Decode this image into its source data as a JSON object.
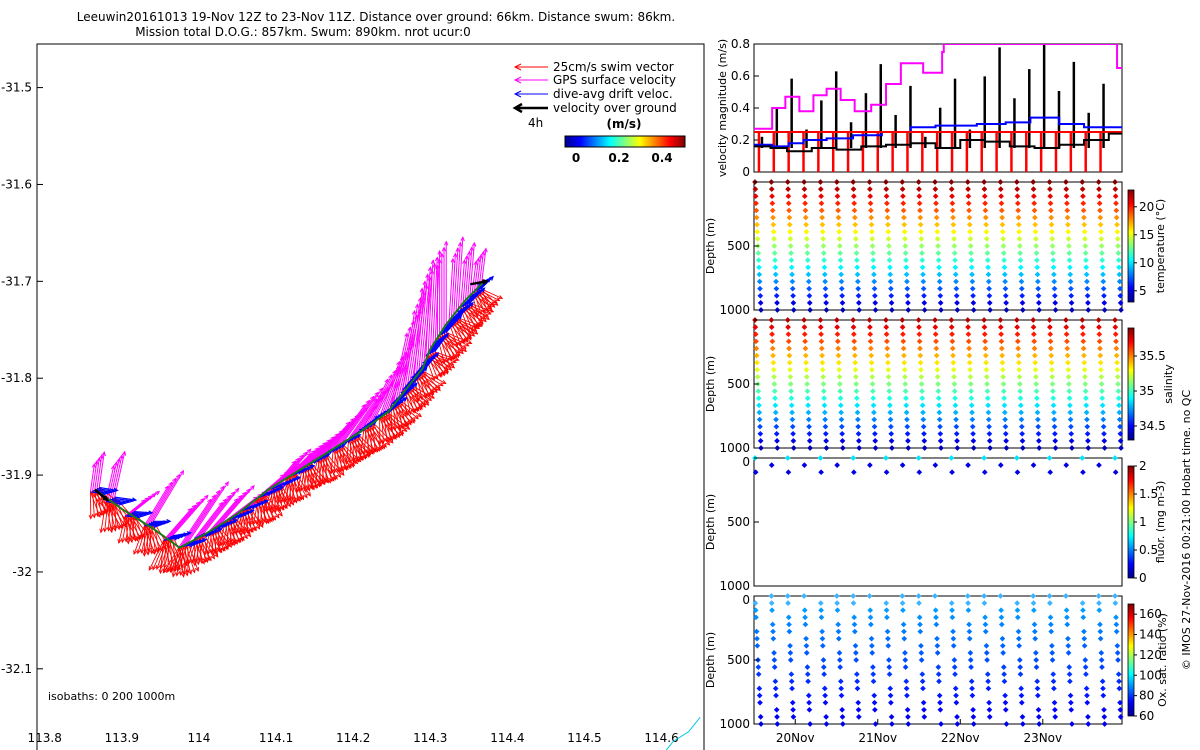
{
  "title": {
    "line1": "Leeuwin20161013 19-Nov 12Z to 23-Nov 11Z. Distance over ground: 66km. Distance swum: 86km.",
    "line2": "Mission total D.O.G.: 857km. Swum: 890km. nrot ucur:0"
  },
  "side_note": "© IMOS 27-Nov-2016 00:21:00 Hobart time. no QC",
  "colors": {
    "swim": "#ff0000",
    "gps": "#ff00ff",
    "drift": "#0000ff",
    "over_ground": "#000000",
    "track": "#1a7a1a"
  },
  "chart_data": [
    {
      "id": "map",
      "type": "quiver",
      "x_ticks": [
        "113.8",
        "113.9",
        "114",
        "114.1",
        "114.2",
        "114.3",
        "114.4",
        "114.5",
        "114.6"
      ],
      "y_ticks": [
        "-31.5",
        "-31.6",
        "-31.7",
        "-31.8",
        "-31.9",
        "-32",
        "-32.1"
      ],
      "xlim": [
        113.79,
        114.655
      ],
      "ylim": [
        -32.19,
        -31.455
      ],
      "legend": [
        {
          "label": "25cm/s swim vector",
          "color": "#ff0000"
        },
        {
          "label": "GPS surface velocity",
          "color": "#ff00ff"
        },
        {
          "label": "dive-avg drift veloc.",
          "color": "#0000ff"
        },
        {
          "label": "velocity over ground",
          "color": "#000000"
        }
      ],
      "legend_position": "top-right",
      "interval_label": "4h",
      "colorbar": {
        "title": "(m/s)",
        "ticks": [
          "0",
          "0.2",
          "0.4"
        ],
        "range": [
          -0.05,
          0.5
        ]
      },
      "isobaths_label": "isobaths: 0   200   1000m",
      "track": [
        {
          "lon": 113.865,
          "lat": -31.915
        },
        {
          "lon": 113.9,
          "lat": -31.935
        },
        {
          "lon": 113.94,
          "lat": -31.955
        },
        {
          "lon": 113.975,
          "lat": -31.975
        },
        {
          "lon": 114.01,
          "lat": -31.96
        },
        {
          "lon": 114.05,
          "lat": -31.94
        },
        {
          "lon": 114.09,
          "lat": -31.915
        },
        {
          "lon": 114.13,
          "lat": -31.895
        },
        {
          "lon": 114.17,
          "lat": -31.875
        },
        {
          "lon": 114.21,
          "lat": -31.855
        },
        {
          "lon": 114.245,
          "lat": -31.835
        },
        {
          "lon": 114.26,
          "lat": -31.82
        },
        {
          "lon": 114.29,
          "lat": -31.79
        },
        {
          "lon": 114.3,
          "lat": -31.77
        },
        {
          "lon": 114.32,
          "lat": -31.745
        },
        {
          "lon": 114.345,
          "lat": -31.72
        },
        {
          "lon": 114.37,
          "lat": -31.7
        }
      ],
      "coastline": [
        {
          "lon": 114.6,
          "lat": -32.19
        },
        {
          "lon": 114.615,
          "lat": -32.175
        },
        {
          "lon": 114.635,
          "lat": -32.165
        },
        {
          "lon": 114.65,
          "lat": -32.15
        }
      ],
      "velocity_samples": [
        {
          "lon": 113.865,
          "lat": -31.915,
          "gps_u": 0.05,
          "gps_v": 0.35,
          "drift_u": 0.3,
          "drift_v": -0.05,
          "swim_u": 0.2,
          "swim_v": -0.4
        },
        {
          "lon": 113.885,
          "lat": -31.925,
          "gps_u": 0.1,
          "gps_v": 0.45,
          "drift_u": 0.35,
          "drift_v": -0.05,
          "swim_u": 0.15,
          "swim_v": -0.5
        },
        {
          "lon": 113.91,
          "lat": -31.94,
          "gps_u": 0.25,
          "gps_v": 0.2,
          "drift_u": 0.3,
          "drift_v": -0.02,
          "swim_u": 0.1,
          "swim_v": -0.45
        },
        {
          "lon": 113.935,
          "lat": -31.95,
          "gps_u": 0.3,
          "gps_v": 0.5,
          "drift_u": 0.28,
          "drift_v": 0.0,
          "swim_u": 0.05,
          "swim_v": -0.5
        },
        {
          "lon": 113.96,
          "lat": -31.965,
          "gps_u": 0.35,
          "gps_v": 0.4,
          "drift_u": 0.3,
          "drift_v": 0.05,
          "swim_u": 0.0,
          "swim_v": -0.55
        },
        {
          "lon": 113.98,
          "lat": -31.972,
          "gps_u": 0.4,
          "gps_v": 0.6,
          "drift_u": 0.3,
          "drift_v": 0.05,
          "swim_u": -0.05,
          "swim_v": -0.5
        },
        {
          "lon": 114.0,
          "lat": -31.963,
          "gps_u": 0.35,
          "gps_v": 0.45,
          "drift_u": 0.3,
          "drift_v": 0.08,
          "swim_u": 0.05,
          "swim_v": -0.45
        },
        {
          "lon": 114.02,
          "lat": -31.955,
          "gps_u": 0.35,
          "gps_v": 0.4,
          "drift_u": 0.3,
          "drift_v": 0.1,
          "swim_u": 0.1,
          "swim_v": -0.4
        },
        {
          "lon": 114.04,
          "lat": -31.945,
          "gps_u": 0.4,
          "gps_v": 0.3,
          "drift_u": 0.32,
          "drift_v": 0.1,
          "swim_u": 0.1,
          "swim_v": -0.42
        },
        {
          "lon": 114.06,
          "lat": -31.935,
          "gps_u": 0.4,
          "gps_v": 0.25,
          "drift_u": 0.3,
          "drift_v": 0.1,
          "swim_u": 0.05,
          "swim_v": -0.4
        },
        {
          "lon": 114.08,
          "lat": -31.922,
          "gps_u": 0.35,
          "gps_v": 0.3,
          "drift_u": 0.3,
          "drift_v": 0.12,
          "swim_u": 0.1,
          "swim_v": -0.45
        },
        {
          "lon": 114.1,
          "lat": -31.912,
          "gps_u": 0.3,
          "gps_v": 0.35,
          "drift_u": 0.32,
          "drift_v": 0.12,
          "swim_u": 0.05,
          "swim_v": -0.4
        },
        {
          "lon": 114.12,
          "lat": -31.9,
          "gps_u": 0.3,
          "gps_v": 0.3,
          "drift_u": 0.3,
          "drift_v": 0.12,
          "swim_u": 0.05,
          "swim_v": -0.45
        },
        {
          "lon": 114.14,
          "lat": -31.89,
          "gps_u": 0.35,
          "gps_v": 0.35,
          "drift_u": 0.3,
          "drift_v": 0.15,
          "swim_u": 0.1,
          "swim_v": -0.4
        },
        {
          "lon": 114.16,
          "lat": -31.88,
          "gps_u": 0.4,
          "gps_v": 0.45,
          "drift_u": 0.3,
          "drift_v": 0.15,
          "swim_u": 0.1,
          "swim_v": -0.45
        },
        {
          "lon": 114.18,
          "lat": -31.87,
          "gps_u": 0.4,
          "gps_v": 0.55,
          "drift_u": 0.3,
          "drift_v": 0.15,
          "swim_u": 0.15,
          "swim_v": -0.4
        },
        {
          "lon": 114.2,
          "lat": -31.86,
          "gps_u": 0.35,
          "gps_v": 0.5,
          "drift_u": 0.3,
          "drift_v": 0.2,
          "swim_u": 0.15,
          "swim_v": -0.4
        },
        {
          "lon": 114.22,
          "lat": -31.848,
          "gps_u": 0.3,
          "gps_v": 0.6,
          "drift_u": 0.3,
          "drift_v": 0.22,
          "swim_u": 0.15,
          "swim_v": -0.45
        },
        {
          "lon": 114.24,
          "lat": -31.838,
          "gps_u": 0.25,
          "gps_v": 0.7,
          "drift_u": 0.3,
          "drift_v": 0.25,
          "swim_u": 0.2,
          "swim_v": -0.4
        },
        {
          "lon": 114.255,
          "lat": -31.825,
          "gps_u": 0.2,
          "gps_v": 0.9,
          "drift_u": 0.28,
          "drift_v": 0.28,
          "swim_u": 0.2,
          "swim_v": -0.4
        },
        {
          "lon": 114.27,
          "lat": -31.81,
          "gps_u": 0.15,
          "gps_v": 1.0,
          "drift_u": 0.25,
          "drift_v": 0.3,
          "swim_u": 0.25,
          "swim_v": -0.35
        },
        {
          "lon": 114.285,
          "lat": -31.795,
          "gps_u": 0.1,
          "gps_v": 1.1,
          "drift_u": 0.25,
          "drift_v": 0.3,
          "swim_u": 0.25,
          "swim_v": -0.35
        },
        {
          "lon": 114.3,
          "lat": -31.775,
          "gps_u": 0.05,
          "gps_v": 1.0,
          "drift_u": 0.22,
          "drift_v": 0.3,
          "swim_u": 0.3,
          "swim_v": -0.3
        },
        {
          "lon": 114.315,
          "lat": -31.755,
          "gps_u": 0.0,
          "gps_v": 0.9,
          "drift_u": 0.25,
          "drift_v": 0.28,
          "swim_u": 0.3,
          "swim_v": -0.35
        },
        {
          "lon": 114.33,
          "lat": -31.74,
          "gps_u": 0.05,
          "gps_v": 0.8,
          "drift_u": 0.25,
          "drift_v": 0.25,
          "swim_u": 0.3,
          "swim_v": -0.3
        },
        {
          "lon": 114.345,
          "lat": -31.725,
          "gps_u": 0.05,
          "gps_v": 0.6,
          "drift_u": 0.25,
          "drift_v": 0.25,
          "swim_u": 0.3,
          "swim_v": -0.3
        },
        {
          "lon": 114.36,
          "lat": -31.71,
          "gps_u": 0.05,
          "gps_v": 0.4,
          "drift_u": 0.2,
          "drift_v": 0.2,
          "swim_u": 0.25,
          "swim_v": -0.3
        }
      ]
    },
    {
      "id": "velocity",
      "type": "line",
      "ylabel": "velocity magnitude (m/s)",
      "y_ticks": [
        "0",
        "0.2",
        "0.4",
        "0.6",
        "0.8"
      ],
      "ylim": [
        0,
        0.8
      ],
      "xlim": [
        19.5,
        23.96
      ],
      "series": [
        {
          "color": "#ff00ff",
          "points": [
            [
              19.5,
              0.27
            ],
            [
              19.72,
              0.27
            ],
            [
              19.72,
              0.4
            ],
            [
              19.88,
              0.4
            ],
            [
              19.88,
              0.47
            ],
            [
              20.05,
              0.47
            ],
            [
              20.05,
              0.38
            ],
            [
              20.22,
              0.38
            ],
            [
              20.22,
              0.48
            ],
            [
              20.38,
              0.48
            ],
            [
              20.38,
              0.52
            ],
            [
              20.55,
              0.52
            ],
            [
              20.55,
              0.45
            ],
            [
              20.72,
              0.45
            ],
            [
              20.72,
              0.38
            ],
            [
              20.92,
              0.38
            ],
            [
              20.92,
              0.42
            ],
            [
              21.1,
              0.42
            ],
            [
              21.1,
              0.55
            ],
            [
              21.28,
              0.55
            ],
            [
              21.28,
              0.68
            ],
            [
              21.55,
              0.68
            ],
            [
              21.55,
              0.62
            ],
            [
              21.78,
              0.62
            ],
            [
              21.78,
              0.75
            ],
            [
              21.8,
              0.75
            ],
            [
              21.8,
              0.8
            ],
            [
              23.9,
              0.8
            ],
            [
              23.9,
              0.65
            ],
            [
              23.96,
              0.65
            ]
          ]
        },
        {
          "color": "#0000ff",
          "points": [
            [
              19.5,
              0.17
            ],
            [
              19.72,
              0.17
            ],
            [
              19.72,
              0.16
            ],
            [
              19.92,
              0.16
            ],
            [
              19.92,
              0.18
            ],
            [
              20.1,
              0.18
            ],
            [
              20.1,
              0.2
            ],
            [
              20.38,
              0.2
            ],
            [
              20.38,
              0.21
            ],
            [
              20.7,
              0.21
            ],
            [
              20.7,
              0.23
            ],
            [
              21.05,
              0.23
            ],
            [
              21.05,
              0.25
            ],
            [
              21.4,
              0.25
            ],
            [
              21.4,
              0.28
            ],
            [
              21.7,
              0.28
            ],
            [
              21.7,
              0.29
            ],
            [
              22.2,
              0.29
            ],
            [
              22.2,
              0.3
            ],
            [
              22.55,
              0.3
            ],
            [
              22.55,
              0.31
            ],
            [
              22.85,
              0.31
            ],
            [
              22.85,
              0.34
            ],
            [
              23.2,
              0.34
            ],
            [
              23.2,
              0.3
            ],
            [
              23.5,
              0.3
            ],
            [
              23.5,
              0.28
            ],
            [
              23.96,
              0.28
            ]
          ]
        },
        {
          "color": "#ff0000",
          "points": [
            [
              19.5,
              0.25
            ],
            [
              23.96,
              0.25
            ]
          ]
        },
        {
          "color": "#000000",
          "points": [
            [
              19.5,
              0.16
            ],
            [
              19.7,
              0.16
            ],
            [
              19.7,
              0.15
            ],
            [
              19.9,
              0.15
            ],
            [
              19.9,
              0.13
            ],
            [
              20.2,
              0.13
            ],
            [
              20.2,
              0.15
            ],
            [
              20.5,
              0.15
            ],
            [
              20.5,
              0.14
            ],
            [
              20.8,
              0.14
            ],
            [
              20.8,
              0.16
            ],
            [
              21.1,
              0.16
            ],
            [
              21.1,
              0.17
            ],
            [
              21.4,
              0.17
            ],
            [
              21.4,
              0.18
            ],
            [
              21.7,
              0.18
            ],
            [
              21.7,
              0.15
            ],
            [
              22.0,
              0.15
            ],
            [
              22.0,
              0.2
            ],
            [
              22.3,
              0.2
            ],
            [
              22.3,
              0.19
            ],
            [
              22.6,
              0.19
            ],
            [
              22.6,
              0.16
            ],
            [
              22.9,
              0.16
            ],
            [
              22.9,
              0.15
            ],
            [
              23.2,
              0.15
            ],
            [
              23.2,
              0.17
            ],
            [
              23.5,
              0.17
            ],
            [
              23.5,
              0.2
            ],
            [
              23.8,
              0.2
            ],
            [
              23.8,
              0.24
            ],
            [
              23.96,
              0.24
            ]
          ]
        }
      ]
    },
    {
      "id": "temperature",
      "type": "scatter",
      "ylabel": "Depth (m)",
      "y_ticks": [
        "",
        "500",
        "1000"
      ],
      "ylim": [
        0,
        1000
      ],
      "colorbar": {
        "label": "temperature (°C)",
        "ticks": [
          "5",
          "10",
          "15",
          "20"
        ],
        "range": [
          3,
          23
        ]
      }
    },
    {
      "id": "salinity",
      "type": "scatter",
      "ylabel": "Depth (m)",
      "y_ticks": [
        "",
        "500",
        "1000"
      ],
      "ylim": [
        0,
        1000
      ],
      "colorbar": {
        "label": "salinity",
        "ticks": [
          "34.5",
          "35",
          "35.5"
        ],
        "range": [
          34.3,
          35.9
        ]
      }
    },
    {
      "id": "fluorescence",
      "type": "scatter",
      "ylabel": "Depth (m)",
      "y_ticks": [
        "0",
        "500",
        "1000"
      ],
      "ylim": [
        0,
        1000
      ],
      "colorbar": {
        "label": "fluor. (mg m-3)",
        "ticks": [
          "0",
          "0.5",
          "1",
          "1.5",
          "2"
        ],
        "range": [
          0,
          2
        ]
      }
    },
    {
      "id": "oxygen",
      "type": "scatter",
      "ylabel": "Depth (m)",
      "y_ticks": [
        "0",
        "500",
        "1000"
      ],
      "ylim": [
        0,
        1000
      ],
      "x_ticks": [
        "20Nov",
        "21Nov",
        "22Nov",
        "23Nov"
      ],
      "x_tick_values": [
        20,
        21,
        22,
        23
      ],
      "xlim": [
        19.5,
        23.96
      ],
      "colorbar": {
        "label": "Ox. sat. ratio (%)",
        "ticks": [
          "60",
          "80",
          "100",
          "120",
          "140",
          "160"
        ],
        "range": [
          60,
          170
        ]
      }
    }
  ]
}
